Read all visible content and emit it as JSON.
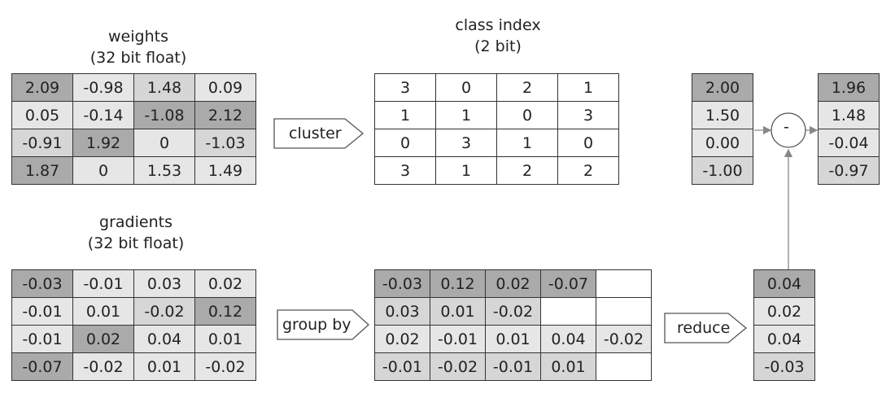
{
  "weights": {
    "title_line1": "weights",
    "title_line2": "(32 bit float)",
    "rows": [
      [
        "2.09",
        "-0.98",
        "1.48",
        "0.09"
      ],
      [
        "0.05",
        "-0.14",
        "-1.08",
        "2.12"
      ],
      [
        "-0.91",
        "1.92",
        "0",
        "-1.03"
      ],
      [
        "1.87",
        "0",
        "1.53",
        "1.49"
      ]
    ],
    "shades": [
      [
        3,
        1,
        2,
        1
      ],
      [
        1,
        1,
        3,
        3
      ],
      [
        2,
        3,
        1,
        2
      ],
      [
        3,
        1,
        1,
        1
      ]
    ]
  },
  "class_index": {
    "title_line1": "class index",
    "title_line2": "(2 bit)",
    "rows": [
      [
        "3",
        "0",
        "2",
        "1"
      ],
      [
        "1",
        "1",
        "0",
        "3"
      ],
      [
        "0",
        "3",
        "1",
        "0"
      ],
      [
        "3",
        "1",
        "2",
        "2"
      ]
    ]
  },
  "gradients": {
    "title_line1": "gradients",
    "title_line2": "(32 bit float)",
    "rows": [
      [
        "-0.03",
        "-0.01",
        "0.03",
        "0.02"
      ],
      [
        "-0.01",
        "0.01",
        "-0.02",
        "0.12"
      ],
      [
        "-0.01",
        "0.02",
        "0.04",
        "0.01"
      ],
      [
        "-0.07",
        "-0.02",
        "0.01",
        "-0.02"
      ]
    ],
    "shades": [
      [
        3,
        1,
        1,
        1
      ],
      [
        1,
        1,
        2,
        3
      ],
      [
        1,
        3,
        1,
        1
      ],
      [
        3,
        1,
        1,
        1
      ]
    ]
  },
  "grouped": {
    "rows": [
      [
        "-0.03",
        "0.12",
        "0.02",
        "-0.07",
        ""
      ],
      [
        "0.03",
        "0.01",
        "-0.02",
        "",
        ""
      ],
      [
        "0.02",
        "-0.01",
        "0.01",
        "0.04",
        "-0.02"
      ],
      [
        "-0.01",
        "-0.02",
        "-0.01",
        "0.01",
        ""
      ]
    ],
    "shades": [
      [
        3,
        3,
        3,
        3,
        0
      ],
      [
        2,
        2,
        2,
        0,
        0
      ],
      [
        1,
        1,
        1,
        1,
        1
      ],
      [
        2,
        2,
        2,
        2,
        0
      ]
    ]
  },
  "centroids": {
    "values": [
      "2.00",
      "1.50",
      "0.00",
      "-1.00"
    ],
    "shades": [
      3,
      1,
      1,
      2
    ]
  },
  "reduced": {
    "values": [
      "0.04",
      "0.02",
      "0.04",
      "-0.03"
    ],
    "shades": [
      3,
      1,
      1,
      2
    ]
  },
  "updated": {
    "values": [
      "1.96",
      "1.48",
      "-0.04",
      "-0.97"
    ],
    "shades": [
      3,
      1,
      1,
      2
    ]
  },
  "labels": {
    "cluster": "cluster",
    "group_by": "group by",
    "reduce": "reduce",
    "minus": "-"
  },
  "colors": {
    "shade0": "#ffffff",
    "shade1": "#e6e6e6",
    "shade2": "#d6d6d6",
    "shade3": "#aaaaaa"
  }
}
